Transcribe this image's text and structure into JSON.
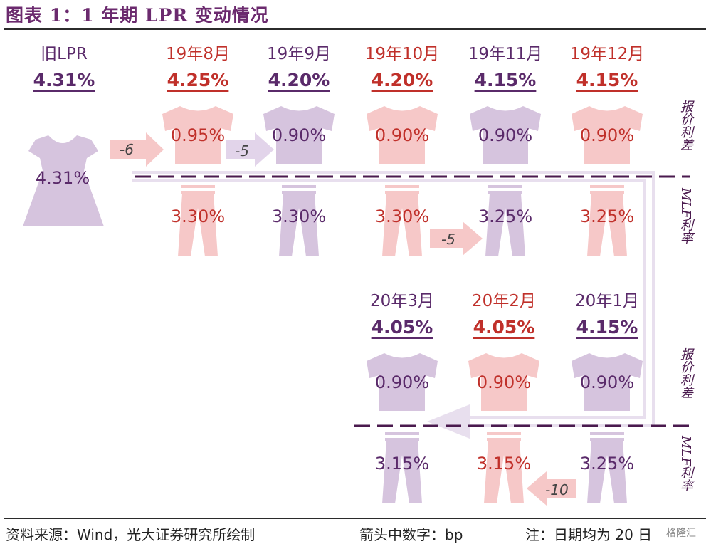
{
  "title": "图表 1：1 年期 LPR 变动情况",
  "colors": {
    "purple_fill": "#d6c4de",
    "pink_fill": "#f6c8c8",
    "purple_text": "#5a2a6a",
    "red_text": "#c0302a",
    "dash": "#4a1a4e"
  },
  "legacy": {
    "label": "旧LPR",
    "rate": "4.31%",
    "dress_value": "4.31%"
  },
  "side_labels": {
    "spread": "报价利差",
    "mlf": "MLF利率"
  },
  "chart_data": {
    "type": "table",
    "title": "1 年期 LPR 变动情况",
    "columns": [
      {
        "month": "19年8月",
        "lpr": "4.25%",
        "spread": "0.95%",
        "mlf": "3.30%",
        "theme": "red"
      },
      {
        "month": "19年9月",
        "lpr": "4.20%",
        "spread": "0.90%",
        "mlf": "3.30%",
        "theme": "purple"
      },
      {
        "month": "19年10月",
        "lpr": "4.20%",
        "spread": "0.90%",
        "mlf": "3.30%",
        "theme": "red"
      },
      {
        "month": "19年11月",
        "lpr": "4.15%",
        "spread": "0.90%",
        "mlf": "3.25%",
        "theme": "purple"
      },
      {
        "month": "19年12月",
        "lpr": "4.15%",
        "spread": "0.90%",
        "mlf": "3.25%",
        "theme": "red"
      },
      {
        "month": "20年1月",
        "lpr": "4.15%",
        "spread": "0.90%",
        "mlf": "3.25%",
        "theme": "purple"
      },
      {
        "month": "20年2月",
        "lpr": "4.05%",
        "spread": "0.90%",
        "mlf": "3.15%",
        "theme": "red"
      },
      {
        "month": "20年3月",
        "lpr": "4.05%",
        "spread": "0.90%",
        "mlf": "3.15%",
        "theme": "purple"
      }
    ],
    "change_arrows": [
      {
        "value": "-6",
        "note": "旧LPR→19年8月"
      },
      {
        "value": "-5",
        "note": "报价利差 8月→9月"
      },
      {
        "value": "-5",
        "note": "MLF 10月→11月"
      },
      {
        "value": "-10",
        "note": "MLF 1月→2月"
      }
    ]
  },
  "footer": {
    "source": "资料来源：Wind，光大证券研究所绘制",
    "arrow_note": "箭头中数字：bp",
    "date_note": "注：日期均为 20 日"
  },
  "watermark": "格隆汇"
}
